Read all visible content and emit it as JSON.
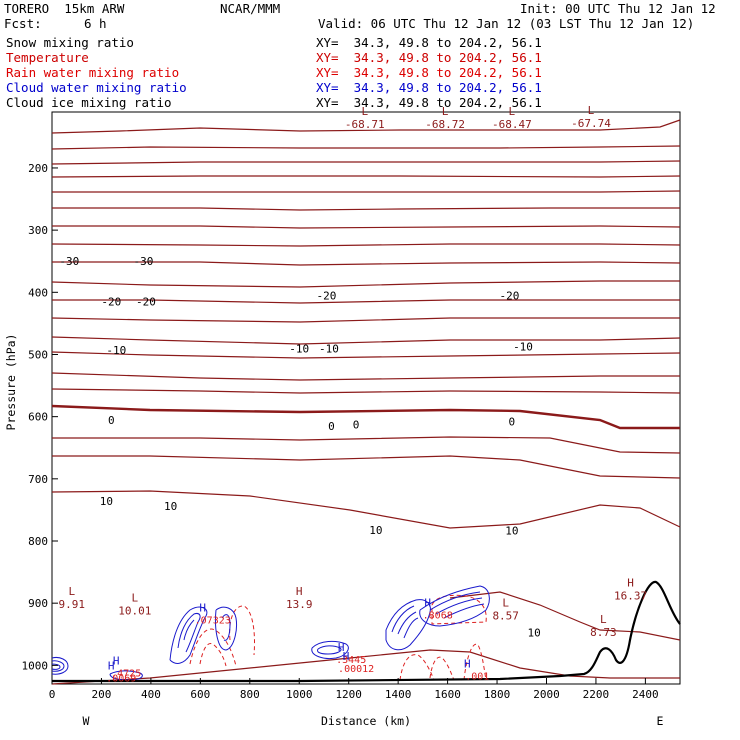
{
  "header": {
    "model": "TORERO  15km ARW",
    "fcst_label": "Fcst:",
    "fcst_value": "6 h",
    "center": "NCAR/MMM",
    "init": "Init: 00 UTC Thu 12 Jan 12",
    "valid": "Valid: 06 UTC Thu 12 Jan 12 (03 LST Thu 12 Jan 12)"
  },
  "fields": [
    {
      "name": "Snow mixing ratio",
      "color": "#000000",
      "xy": "XY=  34.3, 49.8 to 204.2, 56.1",
      "xy_color": "#000000"
    },
    {
      "name": "Temperature",
      "color": "#cc0000",
      "xy": "XY=  34.3, 49.8 to 204.2, 56.1",
      "xy_color": "#cc0000"
    },
    {
      "name": "Rain water mixing ratio",
      "color": "#dd0000",
      "xy": "XY=  34.3, 49.8 to 204.2, 56.1",
      "xy_color": "#dd0000"
    },
    {
      "name": "Cloud water mixing ratio",
      "color": "#0000cc",
      "xy": "XY=  34.3, 49.8 to 204.2, 56.1",
      "xy_color": "#0000cc"
    },
    {
      "name": "Cloud ice mixing ratio",
      "color": "#000000",
      "xy": "XY=  34.3, 49.8 to 204.2, 56.1",
      "xy_color": "#000000"
    }
  ],
  "colors": {
    "temperature": "#8b1a1a",
    "rain": "#dd2222",
    "cloud_water": "#1a1acc",
    "terrain": "#000000"
  },
  "chart_data": {
    "type": "line",
    "title": "",
    "xlabel": "Distance (km)",
    "ylabel": "Pressure (hPa)",
    "xlim": [
      0,
      2540
    ],
    "ylim": [
      1030,
      110
    ],
    "x_ticks": [
      0,
      200,
      400,
      600,
      800,
      1000,
      1200,
      1400,
      1600,
      1800,
      2000,
      2200,
      2400
    ],
    "y_ticks": [
      200,
      300,
      400,
      500,
      600,
      700,
      800,
      900,
      1000
    ],
    "x_end_labels": {
      "left": "W",
      "right": "E"
    },
    "isotherm_labels": [
      {
        "x": 70,
        "p": 350,
        "text": "-30"
      },
      {
        "x": 370,
        "p": 350,
        "text": "-30"
      },
      {
        "x": 240,
        "p": 415,
        "text": "-20"
      },
      {
        "x": 380,
        "p": 415,
        "text": "-20"
      },
      {
        "x": 1110,
        "p": 405,
        "text": "-20"
      },
      {
        "x": 1850,
        "p": 405,
        "text": "-20"
      },
      {
        "x": 260,
        "p": 493,
        "text": "-10"
      },
      {
        "x": 1000,
        "p": 490,
        "text": "-10"
      },
      {
        "x": 1120,
        "p": 490,
        "text": "-10"
      },
      {
        "x": 1905,
        "p": 487,
        "text": "-10"
      },
      {
        "x": 240,
        "p": 605,
        "text": "0"
      },
      {
        "x": 1130,
        "p": 615,
        "text": "0"
      },
      {
        "x": 1230,
        "p": 613,
        "text": "0"
      },
      {
        "x": 1860,
        "p": 608,
        "text": "0"
      },
      {
        "x": 220,
        "p": 736,
        "text": "10"
      },
      {
        "x": 480,
        "p": 744,
        "text": "10"
      },
      {
        "x": 1310,
        "p": 782,
        "text": "10"
      },
      {
        "x": 1860,
        "p": 783,
        "text": "10"
      },
      {
        "x": 1950,
        "p": 947,
        "text": "10"
      }
    ],
    "extrema": [
      {
        "kind": "L",
        "x": 1265,
        "p": 115,
        "value": "-68.71"
      },
      {
        "kind": "L",
        "x": 1590,
        "p": 115,
        "value": "-68.72"
      },
      {
        "kind": "L",
        "x": 1860,
        "p": 115,
        "value": "-68.47"
      },
      {
        "kind": "L",
        "x": 2180,
        "p": 113,
        "value": "-67.74"
      },
      {
        "kind": "L",
        "x": 80,
        "p": 887,
        "value": "9.91"
      },
      {
        "kind": "L",
        "x": 335,
        "p": 897,
        "value": "10.01"
      },
      {
        "kind": "H",
        "x": 1000,
        "p": 887,
        "value": "13.9"
      },
      {
        "kind": "L",
        "x": 1835,
        "p": 905,
        "value": "8.57"
      },
      {
        "kind": "L",
        "x": 2230,
        "p": 932,
        "value": "8.73"
      },
      {
        "kind": "H",
        "x": 2340,
        "p": 873,
        "value": "16.37"
      }
    ],
    "moisture_labels": [
      {
        "kind": "H",
        "x": 300,
        "p": 1005,
        "value": ".4725"
      },
      {
        "kind": "H",
        "x": 280,
        "p": 1013,
        "value": ".0069"
      },
      {
        "kind": "H",
        "x": 650,
        "p": 920,
        "value": ".07323"
      },
      {
        "kind": "H",
        "x": 1210,
        "p": 983,
        "value": ".3445"
      },
      {
        "kind": "H",
        "x": 1230,
        "p": 998,
        "value": ".00012"
      },
      {
        "kind": "H",
        "x": 1560,
        "p": 912,
        "value": ".8068"
      },
      {
        "kind": "H",
        "x": 1720,
        "p": 1010,
        "value": ".001"
      }
    ]
  }
}
